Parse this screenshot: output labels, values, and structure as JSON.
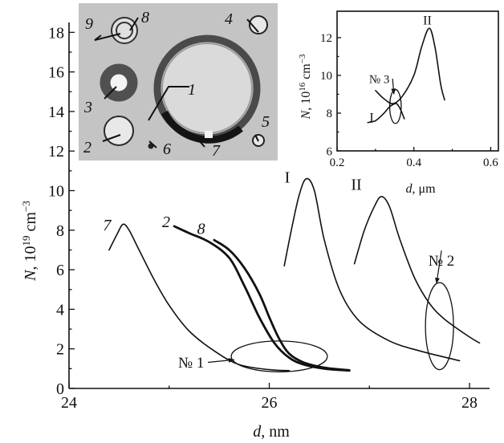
{
  "chart_data": [
    {
      "type": "line",
      "xlabel_var": "d",
      "xlabel_unit": ", nm",
      "ylabel_var": "N",
      "ylabel_unit_pre": ", 10",
      "ylabel_exp": "19",
      "ylabel_unit_post": " cm",
      "ylabel_unit_exp": "−3",
      "xlim": [
        24,
        28.2
      ],
      "ylim": [
        0,
        18.5
      ],
      "xticks": [
        24,
        26,
        28
      ],
      "yticks": [
        0,
        2,
        4,
        6,
        8,
        10,
        12,
        14,
        16,
        18
      ],
      "grid": false,
      "series": [
        {
          "name": "7",
          "thick": false,
          "label_at": [
            24.38,
            8.0
          ],
          "points": [
            [
              24.4,
              7.0
            ],
            [
              24.48,
              7.8
            ],
            [
              24.54,
              8.3
            ],
            [
              24.6,
              8.0
            ],
            [
              24.7,
              7.0
            ],
            [
              24.85,
              5.5
            ],
            [
              25.0,
              4.2
            ],
            [
              25.2,
              2.9
            ],
            [
              25.45,
              1.9
            ],
            [
              25.7,
              1.2
            ],
            [
              26.0,
              0.95
            ],
            [
              26.2,
              0.9
            ]
          ]
        },
        {
          "name": "2",
          "thick": true,
          "label_at": [
            24.97,
            8.15
          ],
          "points": [
            [
              25.05,
              8.2
            ],
            [
              25.2,
              7.85
            ],
            [
              25.4,
              7.4
            ],
            [
              25.6,
              6.6
            ],
            [
              25.75,
              5.2
            ],
            [
              25.9,
              3.6
            ],
            [
              26.05,
              2.3
            ],
            [
              26.2,
              1.55
            ],
            [
              26.35,
              1.2
            ],
            [
              26.55,
              1.0
            ],
            [
              26.8,
              0.9
            ]
          ]
        },
        {
          "name": "8",
          "thick": true,
          "label_at": [
            25.32,
            7.8
          ],
          "points": [
            [
              25.45,
              7.5
            ],
            [
              25.6,
              7.0
            ],
            [
              25.75,
              6.1
            ],
            [
              25.9,
              4.8
            ],
            [
              26.0,
              3.6
            ],
            [
              26.1,
              2.5
            ],
            [
              26.2,
              1.75
            ],
            [
              26.35,
              1.3
            ],
            [
              26.55,
              1.05
            ],
            [
              26.8,
              0.92
            ]
          ]
        },
        {
          "name": "I",
          "thick": false,
          "label_at": [
            26.18,
            10.4
          ],
          "points": [
            [
              26.15,
              6.2
            ],
            [
              26.22,
              8.0
            ],
            [
              26.3,
              9.8
            ],
            [
              26.37,
              10.6
            ],
            [
              26.45,
              10.0
            ],
            [
              26.55,
              7.5
            ],
            [
              26.7,
              5.0
            ],
            [
              26.9,
              3.4
            ],
            [
              27.2,
              2.4
            ],
            [
              27.5,
              1.9
            ],
            [
              27.9,
              1.4
            ]
          ]
        },
        {
          "name": "II",
          "thick": false,
          "label_at": [
            26.87,
            10.05
          ],
          "points": [
            [
              26.85,
              6.3
            ],
            [
              26.95,
              8.0
            ],
            [
              27.05,
              9.2
            ],
            [
              27.12,
              9.7
            ],
            [
              27.2,
              9.2
            ],
            [
              27.3,
              7.6
            ],
            [
              27.45,
              5.6
            ],
            [
              27.6,
              4.3
            ],
            [
              27.75,
              3.5
            ],
            [
              28.0,
              2.6
            ],
            [
              28.1,
              2.3
            ]
          ]
        }
      ],
      "annotations": [
        {
          "label": "№ 1",
          "ellipse": {
            "cx": 26.1,
            "cy": 1.62,
            "rx": 0.48,
            "ry": 0.78
          },
          "label_at": [
            25.22,
            1.05
          ],
          "arrow_to": [
            25.65,
            1.45
          ]
        },
        {
          "label": "№ 2",
          "ellipse": {
            "cx": 27.7,
            "cy": 3.15,
            "rx": 0.14,
            "ry": 2.2
          },
          "label_at": [
            27.72,
            6.2
          ],
          "arrow_to": [
            27.67,
            5.3
          ]
        }
      ]
    },
    {
      "type": "line",
      "xlabel_var": "d",
      "xlabel_unit": ", μm",
      "ylabel_var": "N",
      "ylabel_unit_pre": ", 10",
      "ylabel_exp": "16",
      "ylabel_unit_post": " cm",
      "ylabel_unit_exp": "−3",
      "xlim": [
        0.2,
        0.62
      ],
      "ylim": [
        6,
        13.4
      ],
      "xticks": [
        0.2,
        0.4,
        0.6
      ],
      "xtick_labels": [
        "0.2",
        "0.4",
        "0.6"
      ],
      "yticks": [
        6,
        8,
        10,
        12
      ],
      "grid": false,
      "series": [
        {
          "name": "I",
          "thick": false,
          "label_at": [
            0.29,
            7.55
          ],
          "points": [
            [
              0.28,
              7.5
            ],
            [
              0.3,
              7.6
            ],
            [
              0.32,
              7.95
            ],
            [
              0.335,
              8.3
            ],
            [
              0.345,
              8.45
            ],
            [
              0.355,
              8.5
            ],
            [
              0.365,
              8.2
            ],
            [
              0.375,
              7.7
            ]
          ]
        },
        {
          "name": "II",
          "thick": false,
          "label_at": [
            0.435,
            12.7
          ],
          "points": [
            [
              0.3,
              9.2
            ],
            [
              0.32,
              8.8
            ],
            [
              0.345,
              8.5
            ],
            [
              0.37,
              8.9
            ],
            [
              0.4,
              10.0
            ],
            [
              0.42,
              11.5
            ],
            [
              0.44,
              12.5
            ],
            [
              0.455,
              11.5
            ],
            [
              0.47,
              9.5
            ],
            [
              0.48,
              8.7
            ]
          ]
        }
      ],
      "annotations": [
        {
          "label": "№ 3",
          "ellipse": {
            "cx": 0.352,
            "cy": 8.35,
            "rx": 0.015,
            "ry": 0.9
          },
          "label_at": [
            0.31,
            9.6
          ],
          "arrow_to": [
            0.348,
            9.0
          ]
        }
      ]
    }
  ],
  "photo": {
    "ring_labels": [
      "1",
      "2",
      "3",
      "4",
      "5",
      "6",
      "7",
      "8",
      "9"
    ]
  }
}
